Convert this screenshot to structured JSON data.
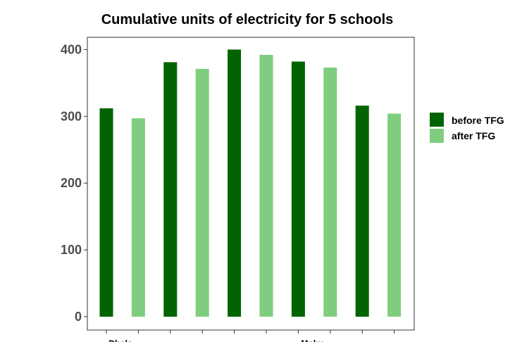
{
  "chart_data": {
    "type": "bar",
    "title": "Cumulative units of electricity for 5 schools",
    "xlabel": "",
    "ylabel": "",
    "ylim": [
      0,
      420
    ],
    "yticks": [
      0,
      100,
      200,
      300,
      400
    ],
    "grid": false,
    "legend_position": "right",
    "categories": [
      "Dhola",
      "",
      "",
      "Mohu",
      ""
    ],
    "series": [
      {
        "name": "before TFG",
        "color": "#006400",
        "values": [
          312,
          381,
          400,
          382,
          316
        ]
      },
      {
        "name": "after TFG",
        "color": "#7fcd7f",
        "values": [
          297,
          371,
          392,
          373,
          304
        ]
      }
    ]
  }
}
